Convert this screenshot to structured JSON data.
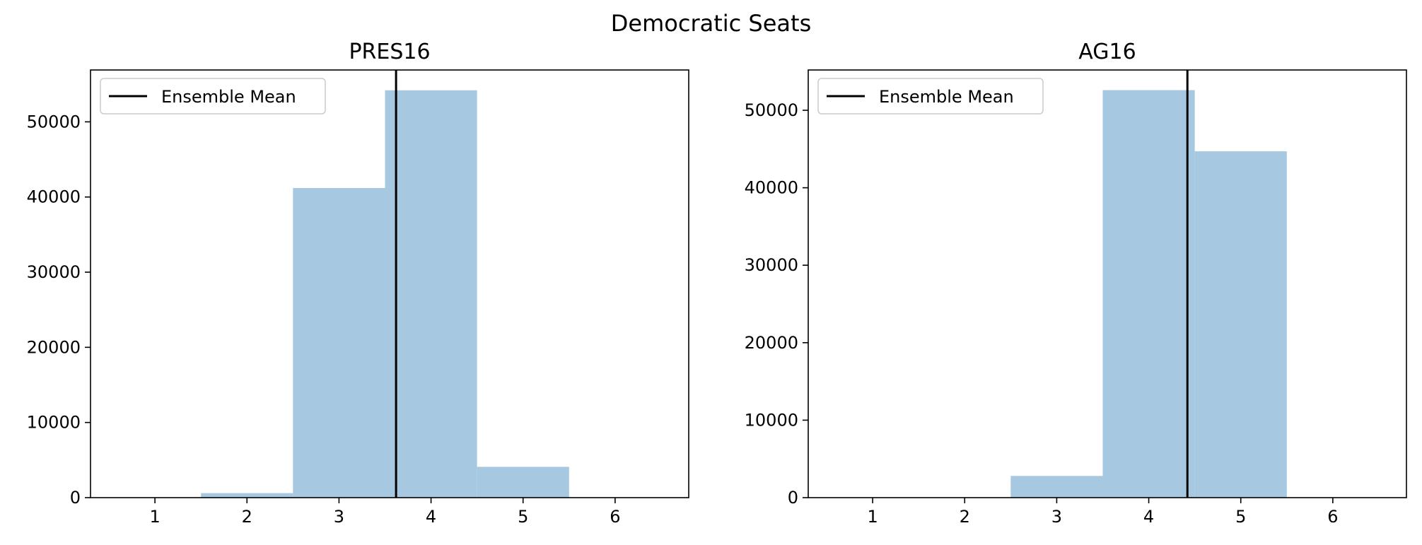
{
  "suptitle": "Democratic Seats",
  "colors": {
    "bar": "#a6c8e0",
    "mean_line": "#000000"
  },
  "chart_data": [
    {
      "type": "bar",
      "title": "PRES16",
      "xlabel": "",
      "ylabel": "",
      "categories": [
        1,
        2,
        3,
        4,
        5,
        6
      ],
      "values": [
        0,
        600,
        41200,
        54200,
        4100,
        0
      ],
      "bin_width": 1,
      "xlim": [
        0.3,
        6.8
      ],
      "ylim": [
        0,
        56900
      ],
      "xticks": [
        1,
        2,
        3,
        4,
        5,
        6
      ],
      "yticks": [
        0,
        10000,
        20000,
        30000,
        40000,
        50000
      ],
      "mean_line": {
        "label": "Ensemble Mean",
        "x": 3.62
      },
      "legend": {
        "position": "top-left",
        "entries": [
          "Ensemble Mean"
        ]
      },
      "grid": false
    },
    {
      "type": "bar",
      "title": "AG16",
      "xlabel": "",
      "ylabel": "",
      "categories": [
        1,
        2,
        3,
        4,
        5,
        6
      ],
      "values": [
        0,
        0,
        2800,
        52600,
        44700,
        0
      ],
      "bin_width": 1,
      "xlim": [
        0.3,
        6.8
      ],
      "ylim": [
        0,
        55200
      ],
      "xticks": [
        1,
        2,
        3,
        4,
        5,
        6
      ],
      "yticks": [
        0,
        10000,
        20000,
        30000,
        40000,
        50000
      ],
      "mean_line": {
        "label": "Ensemble Mean",
        "x": 4.42
      },
      "legend": {
        "position": "top-left",
        "entries": [
          "Ensemble Mean"
        ]
      },
      "grid": false
    }
  ]
}
